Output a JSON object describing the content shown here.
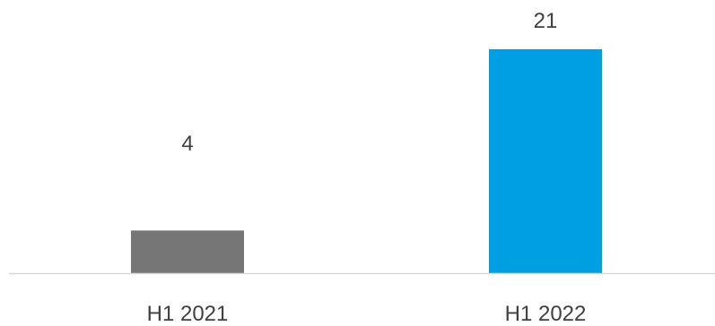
{
  "chart_data": {
    "type": "bar",
    "categories": [
      "H1 2021",
      "H1 2022"
    ],
    "values": [
      4,
      21
    ],
    "data_labels": [
      "4",
      "21"
    ],
    "colors": [
      "#767676",
      "#009FE3"
    ],
    "title": "",
    "xlabel": "",
    "ylabel": "",
    "ylim": [
      0,
      22
    ],
    "grid": false,
    "legend": "none"
  }
}
